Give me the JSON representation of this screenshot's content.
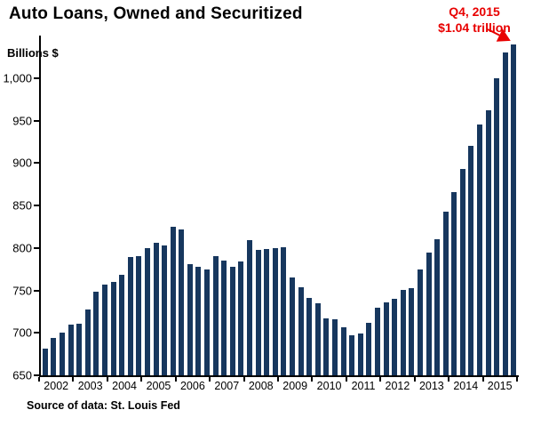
{
  "title": "Auto Loans, Owned and Securitized",
  "annotation": {
    "line1": "Q4, 2015",
    "line2": "$1.04 trillion"
  },
  "y_axis_title": "Billions $",
  "source": "Source of data: St. Louis Fed",
  "colors": {
    "bar": "#17375e",
    "axis": "#000000",
    "annotation": "#e80000",
    "background": "#ffffff"
  },
  "chart_data": {
    "type": "bar",
    "title": "Auto Loans, Owned and Securitized",
    "xlabel": "",
    "ylabel": "Billions $",
    "ylim": [
      650,
      1050
    ],
    "yticks": [
      650,
      700,
      750,
      800,
      850,
      900,
      950,
      1000
    ],
    "ytick_labels": [
      "650",
      "700",
      "750",
      "800",
      "850",
      "900",
      "950",
      "1,000"
    ],
    "grid": false,
    "legend": "none",
    "years": [
      "2002",
      "2003",
      "2004",
      "2005",
      "2006",
      "2007",
      "2008",
      "2009",
      "2010",
      "2011",
      "2012",
      "2013",
      "2014",
      "2015"
    ],
    "quarters_per_year": 4,
    "values": [
      681,
      694,
      700,
      710,
      711,
      727,
      748,
      757,
      760,
      768,
      789,
      790,
      800,
      806,
      803,
      825,
      822,
      781,
      778,
      775,
      790,
      785,
      778,
      784,
      809,
      798,
      799,
      800,
      801,
      765,
      754,
      741,
      735,
      717,
      716,
      707,
      697,
      699,
      712,
      730,
      736,
      740,
      751,
      753,
      775,
      795,
      810,
      843,
      866,
      893,
      920,
      945,
      962,
      1000,
      1030,
      1040
    ],
    "highlight": {
      "label": "Q4, 2015",
      "value_text": "$1.04 trillion",
      "value": 1040
    }
  }
}
